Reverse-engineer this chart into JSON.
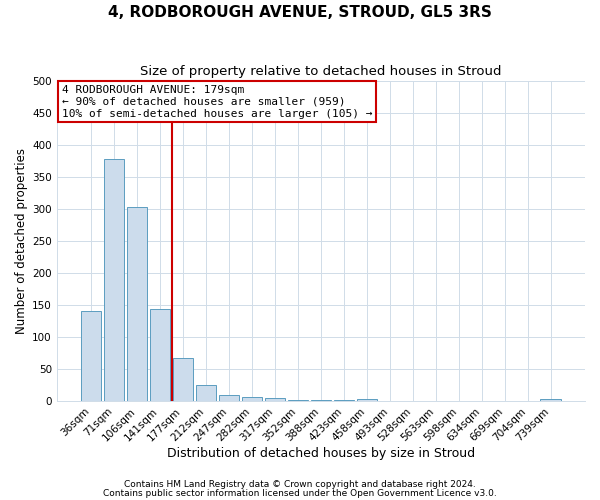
{
  "title": "4, RODBOROUGH AVENUE, STROUD, GL5 3RS",
  "subtitle": "Size of property relative to detached houses in Stroud",
  "xlabel": "Distribution of detached houses by size in Stroud",
  "ylabel": "Number of detached properties",
  "bar_labels": [
    "36sqm",
    "71sqm",
    "106sqm",
    "141sqm",
    "177sqm",
    "212sqm",
    "247sqm",
    "282sqm",
    "317sqm",
    "352sqm",
    "388sqm",
    "423sqm",
    "458sqm",
    "493sqm",
    "528sqm",
    "563sqm",
    "598sqm",
    "634sqm",
    "669sqm",
    "704sqm",
    "739sqm"
  ],
  "bar_values": [
    140,
    378,
    303,
    143,
    68,
    25,
    10,
    7,
    5,
    2,
    1,
    1,
    4,
    0,
    0,
    0,
    0,
    0,
    0,
    0,
    4
  ],
  "bar_color": "#ccdcec",
  "bar_edgecolor": "#5b9dc0",
  "vline_x_index": 4,
  "vline_color": "#cc0000",
  "ylim": [
    0,
    500
  ],
  "yticks": [
    0,
    50,
    100,
    150,
    200,
    250,
    300,
    350,
    400,
    450,
    500
  ],
  "annotation_title": "4 RODBOROUGH AVENUE: 179sqm",
  "annotation_line1": "← 90% of detached houses are smaller (959)",
  "annotation_line2": "10% of semi-detached houses are larger (105) →",
  "annotation_box_edgecolor": "#cc0000",
  "footnote1": "Contains HM Land Registry data © Crown copyright and database right 2024.",
  "footnote2": "Contains public sector information licensed under the Open Government Licence v3.0.",
  "background_color": "#ffffff",
  "plot_bg_color": "#ffffff",
  "grid_color": "#d0dce8",
  "title_fontsize": 11,
  "subtitle_fontsize": 9.5,
  "xlabel_fontsize": 9,
  "ylabel_fontsize": 8.5,
  "tick_fontsize": 7.5,
  "annotation_fontsize": 8,
  "footnote_fontsize": 6.5
}
